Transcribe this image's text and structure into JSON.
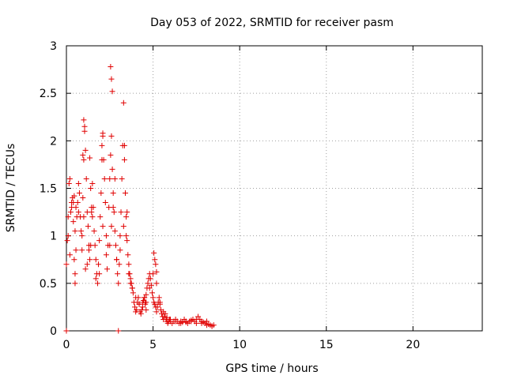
{
  "chart_data": {
    "type": "scatter",
    "title": "Day 053 of 2022, SRMTID for receiver pasm",
    "xlabel": "GPS time / hours",
    "ylabel": "SRMTID / TECUs",
    "xlim": [
      0,
      24
    ],
    "ylim": [
      0,
      3
    ],
    "xticks": [
      0,
      5,
      10,
      15,
      20
    ],
    "xtick_labels": [
      "0",
      "5",
      "10",
      "15",
      "20"
    ],
    "yticks": [
      0,
      0.5,
      1,
      1.5,
      2,
      2.5,
      3
    ],
    "ytick_labels": [
      "0",
      "0.5",
      "1",
      "1.5",
      "2",
      "2.5",
      "3"
    ],
    "grid": true,
    "marker": "+",
    "color": "#e00000",
    "series": [
      {
        "name": "SRMTID",
        "x": [
          0.0,
          0.05,
          0.1,
          0.15,
          0.2,
          0.25,
          0.3,
          0.35,
          0.4,
          0.45,
          0.5,
          0.55,
          0.6,
          0.65,
          0.7,
          0.75,
          0.8,
          0.85,
          0.9,
          0.95,
          1.0,
          1.05,
          1.1,
          1.15,
          1.2,
          1.25,
          1.3,
          1.35,
          1.4,
          1.45,
          1.5,
          1.55,
          1.6,
          1.65,
          1.7,
          1.75,
          1.8,
          1.85,
          1.9,
          1.95,
          2.0,
          2.05,
          2.1,
          2.15,
          2.2,
          2.25,
          2.3,
          2.35,
          2.4,
          2.45,
          2.5,
          2.55,
          2.6,
          2.65,
          2.7,
          2.75,
          2.8,
          2.85,
          2.9,
          2.95,
          3.0,
          3.05,
          3.1,
          3.15,
          3.2,
          3.25,
          3.3,
          3.35,
          3.4,
          3.45,
          3.5,
          3.55,
          3.6,
          3.65,
          3.7,
          3.75,
          3.8,
          3.85,
          3.9,
          3.95,
          4.0,
          4.05,
          4.1,
          4.15,
          4.2,
          4.25,
          4.3,
          4.35,
          4.4,
          4.45,
          4.5,
          4.55,
          4.6,
          4.65,
          4.7,
          4.75,
          4.8,
          4.85,
          4.9,
          4.95,
          5.0,
          5.05,
          5.1,
          5.15,
          5.2,
          5.25,
          5.3,
          5.35,
          5.4,
          5.45,
          5.5,
          5.55,
          5.6,
          5.65,
          5.7,
          5.75,
          5.8,
          5.85,
          5.9,
          5.95,
          6.0,
          6.1,
          6.2,
          6.3,
          6.4,
          6.5,
          6.6,
          6.7,
          6.8,
          6.9,
          7.0,
          7.1,
          7.2,
          7.3,
          7.4,
          7.5,
          7.6,
          7.7,
          7.8,
          7.9,
          8.0,
          8.1,
          8.2,
          8.3,
          8.4,
          8.5,
          0.0,
          3.0,
          0.1,
          0.2,
          0.3,
          0.5,
          0.7,
          0.9,
          1.0,
          1.1,
          1.2,
          1.3,
          1.5,
          1.7,
          1.9,
          2.1,
          2.3,
          2.5,
          2.6,
          2.7,
          2.8,
          2.9,
          3.1,
          3.3,
          3.5,
          3.6,
          3.7,
          3.8,
          4.0,
          4.2,
          4.4,
          4.6,
          4.8,
          5.0,
          5.2,
          5.4,
          5.6,
          5.8,
          6.0,
          6.3,
          6.6,
          6.9,
          7.2,
          7.5,
          7.8,
          8.1,
          8.4,
          2.55,
          2.6,
          2.65,
          1.0,
          1.05,
          0.95,
          2.1,
          2.05,
          3.35,
          3.4,
          3.45,
          0.4,
          0.45,
          0.5,
          0.55,
          1.35,
          1.4,
          1.45,
          5.05,
          5.1,
          5.15,
          5.2,
          4.5,
          4.55,
          4.6
        ],
        "y": [
          0.7,
          0.95,
          1.2,
          1.55,
          1.6,
          1.25,
          1.35,
          1.4,
          1.15,
          0.75,
          0.5,
          0.85,
          1.2,
          1.35,
          1.55,
          1.45,
          1.2,
          1.05,
          1.0,
          1.4,
          1.8,
          2.1,
          1.9,
          1.6,
          1.25,
          1.1,
          0.85,
          0.75,
          0.9,
          1.3,
          1.55,
          1.3,
          1.05,
          0.9,
          0.75,
          0.6,
          0.5,
          0.7,
          0.95,
          1.2,
          1.45,
          1.8,
          2.05,
          1.8,
          1.6,
          1.35,
          0.8,
          0.65,
          0.9,
          1.3,
          1.6,
          1.85,
          2.05,
          1.7,
          1.45,
          1.25,
          1.05,
          0.9,
          0.75,
          0.6,
          0.5,
          0.7,
          1.0,
          1.25,
          1.6,
          1.95,
          2.4,
          1.8,
          1.45,
          1.2,
          0.95,
          0.8,
          0.7,
          0.6,
          0.55,
          0.5,
          0.45,
          0.4,
          0.3,
          0.25,
          0.2,
          0.22,
          0.3,
          0.35,
          0.28,
          0.2,
          0.18,
          0.22,
          0.3,
          0.32,
          0.35,
          0.3,
          0.38,
          0.45,
          0.5,
          0.55,
          0.6,
          0.55,
          0.48,
          0.4,
          0.35,
          0.3,
          0.28,
          0.25,
          0.2,
          0.25,
          0.3,
          0.35,
          0.3,
          0.22,
          0.18,
          0.15,
          0.12,
          0.15,
          0.18,
          0.12,
          0.1,
          0.08,
          0.1,
          0.12,
          0.1,
          0.08,
          0.1,
          0.12,
          0.1,
          0.08,
          0.1,
          0.09,
          0.12,
          0.1,
          0.08,
          0.1,
          0.11,
          0.12,
          0.1,
          0.08,
          0.15,
          0.12,
          0.1,
          0.09,
          0.08,
          0.1,
          0.07,
          0.06,
          0.05,
          0.06,
          0.0,
          0.0,
          1.0,
          0.8,
          1.3,
          0.6,
          1.25,
          0.85,
          1.2,
          0.65,
          0.7,
          0.9,
          1.2,
          0.55,
          0.6,
          1.1,
          1.0,
          0.9,
          1.1,
          1.3,
          1.6,
          0.75,
          0.85,
          1.1,
          1.25,
          0.6,
          0.5,
          0.45,
          0.35,
          0.28,
          0.25,
          0.3,
          0.45,
          0.6,
          0.5,
          0.28,
          0.2,
          0.14,
          0.12,
          0.1,
          0.08,
          0.09,
          0.1,
          0.12,
          0.08,
          0.06,
          0.05,
          2.78,
          2.65,
          2.52,
          2.22,
          2.15,
          1.85,
          2.08,
          1.95,
          1.95,
          1.45,
          1.0,
          1.35,
          1.42,
          1.05,
          1.3,
          1.82,
          1.5,
          1.25,
          0.82,
          0.75,
          0.7,
          0.62,
          0.35,
          0.28,
          0.22
        ]
      }
    ]
  }
}
